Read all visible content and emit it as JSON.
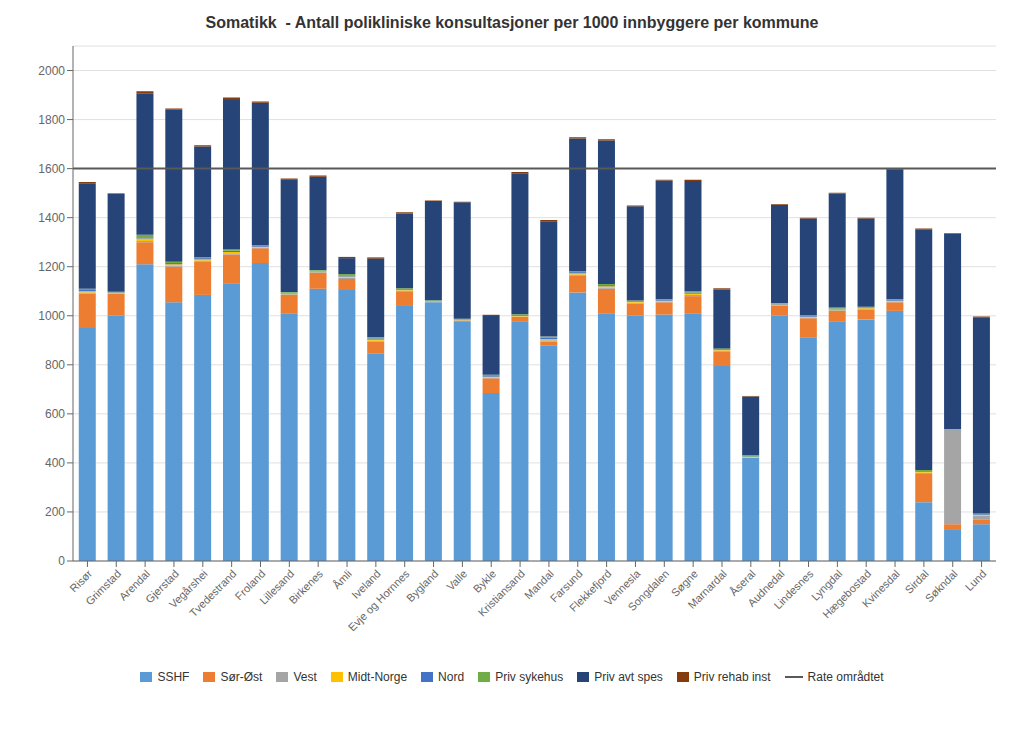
{
  "chart_data": {
    "type": "bar",
    "title": "Somatikk  - Antall polikliniske konsultasjoner per 1000 innbyggere per kommune",
    "categories": [
      "Risør",
      "Grimstad",
      "Arendal",
      "Gjerstad",
      "Vegårshei",
      "Tvedestrand",
      "Froland",
      "Lillesand",
      "Birkenes",
      "Åmli",
      "Iveland",
      "Evje og Hornnes",
      "Bygland",
      "Valle",
      "Bykle",
      "Kristiansand",
      "Mandal",
      "Farsund",
      "Flekkefjord",
      "Vennesla",
      "Songdalen",
      "Søgne",
      "Marnardal",
      "Åseral",
      "Audnedal",
      "Lindesnes",
      "Lyngdal",
      "Hægebostad",
      "Kvinesdal",
      "Sirdal",
      "Søkndal",
      "Lund"
    ],
    "series": [
      {
        "name": "SSHF",
        "color": "#5B9BD5",
        "values": [
          950,
          1000,
          1210,
          1055,
          1085,
          1130,
          1215,
          1010,
          1110,
          1105,
          845,
          1040,
          1055,
          975,
          685,
          975,
          880,
          1095,
          1010,
          1000,
          1005,
          1010,
          795,
          420,
          1000,
          910,
          975,
          985,
          1020,
          240,
          130,
          150
        ]
      },
      {
        "name": "Sør-Øst",
        "color": "#ED7D31",
        "values": [
          140,
          90,
          90,
          145,
          135,
          120,
          60,
          75,
          65,
          45,
          50,
          60,
          0,
          5,
          60,
          20,
          15,
          70,
          100,
          50,
          50,
          70,
          60,
          0,
          40,
          80,
          45,
          40,
          35,
          115,
          20,
          20
        ]
      },
      {
        "name": "Vest",
        "color": "#A5A5A5",
        "values": [
          5,
          2,
          5,
          5,
          5,
          5,
          3,
          3,
          3,
          5,
          3,
          3,
          2,
          2,
          3,
          2,
          5,
          3,
          5,
          3,
          3,
          5,
          3,
          2,
          3,
          3,
          3,
          3,
          3,
          5,
          380,
          15
        ]
      },
      {
        "name": "Midt-Norge",
        "color": "#FFC000",
        "values": [
          5,
          2,
          10,
          5,
          5,
          5,
          3,
          3,
          3,
          5,
          5,
          3,
          2,
          2,
          3,
          3,
          5,
          5,
          5,
          3,
          3,
          5,
          3,
          2,
          3,
          3,
          3,
          3,
          3,
          3,
          2,
          3
        ]
      },
      {
        "name": "Nord",
        "color": "#4472C4",
        "values": [
          5,
          2,
          5,
          5,
          5,
          5,
          3,
          3,
          3,
          5,
          5,
          3,
          2,
          2,
          3,
          3,
          5,
          5,
          5,
          3,
          3,
          5,
          3,
          2,
          3,
          3,
          3,
          3,
          3,
          3,
          3,
          3
        ]
      },
      {
        "name": "Priv sykehus",
        "color": "#70AD47",
        "values": [
          5,
          2,
          10,
          5,
          5,
          5,
          5,
          3,
          3,
          5,
          5,
          3,
          2,
          2,
          5,
          3,
          5,
          5,
          5,
          3,
          3,
          5,
          3,
          5,
          3,
          3,
          5,
          3,
          3,
          5,
          3,
          3
        ]
      },
      {
        "name": "Priv avt spes",
        "color": "#264478",
        "values": [
          430,
          400,
          575,
          620,
          450,
          610,
          580,
          460,
          380,
          65,
          320,
          305,
          405,
          475,
          240,
          575,
          470,
          540,
          585,
          385,
          485,
          450,
          240,
          240,
          400,
          395,
          465,
          360,
          530,
          980,
          795,
          800
        ]
      },
      {
        "name": "Priv rehab inst",
        "color": "#843C0C",
        "values": [
          5,
          2,
          10,
          5,
          5,
          10,
          5,
          3,
          5,
          5,
          5,
          5,
          2,
          2,
          5,
          5,
          5,
          5,
          5,
          3,
          3,
          5,
          5,
          2,
          3,
          3,
          3,
          3,
          3,
          5,
          3,
          3
        ]
      }
    ],
    "stacked": true,
    "reference_line": {
      "value": 1600,
      "name": "Rate områdtet",
      "color": "#595959"
    },
    "ylim": [
      0,
      2100
    ],
    "yticks": [
      0,
      200,
      400,
      600,
      800,
      1000,
      1200,
      1400,
      1600,
      1800,
      2000
    ],
    "grid": true,
    "legend": "bottom"
  }
}
